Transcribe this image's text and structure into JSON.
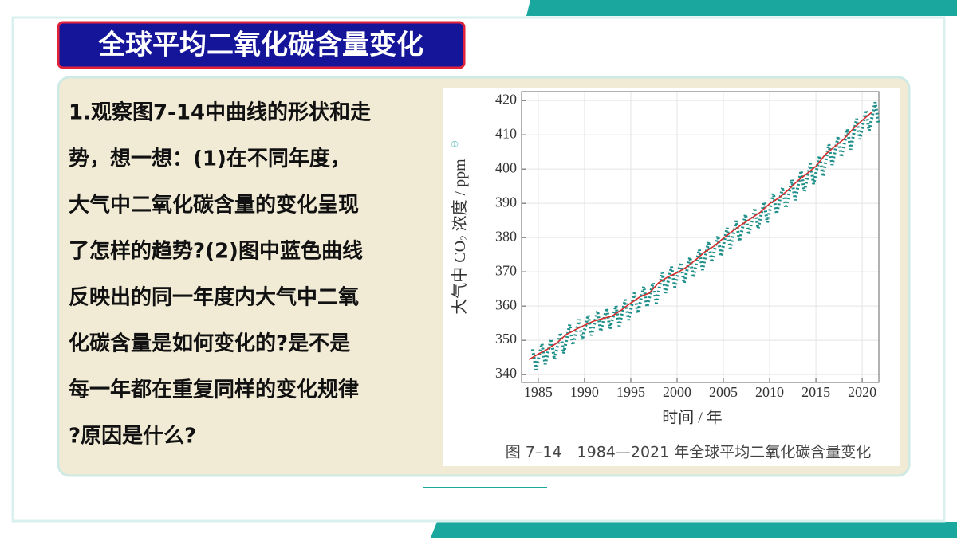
{
  "title": "全球平均二氧化碳含量变化",
  "question": {
    "lines": [
      "1.观察图7-14中曲线的形状和走",
      "势，想一想：(1)在不同年度，",
      "大气中二氧化碳含量的变化呈现",
      "了怎样的趋势?(2)图中蓝色曲线",
      "反映出的同一年度内大气中二氧",
      "化碳含量是如何变化的?是不是",
      "每一年都在重复同样的变化规律",
      "?原因是什么?"
    ]
  },
  "figure": {
    "type": "line",
    "y_label": {
      "text": "大气中 CO",
      "sub": "2",
      "rest": " 浓度 / ppm",
      "note": "①"
    },
    "x_label": "时间 / 年",
    "caption": "图 7–14　1984—2021 年全球平均二氧化碳含量变化",
    "xlim": [
      1983.2,
      2021.8
    ],
    "ylim": [
      337.7,
      422.6
    ],
    "xticks": [
      1985,
      1990,
      1995,
      2000,
      2005,
      2010,
      2015,
      2020
    ],
    "yticks": [
      340,
      350,
      360,
      370,
      380,
      390,
      400,
      410,
      420
    ],
    "grid": true,
    "series": [
      {
        "color": "#1f8f8a",
        "style": "dotted",
        "x": [
          1984.4,
          1984.75,
          1985.4,
          1985.75,
          1986.4,
          1986.75,
          1987.4,
          1987.75,
          1988.4,
          1988.75,
          1989.4,
          1989.75,
          1990.4,
          1990.75,
          1991.4,
          1991.75,
          1992.4,
          1992.75,
          1993.4,
          1993.75,
          1994.4,
          1994.75,
          1995.4,
          1995.75,
          1996.4,
          1996.75,
          1997.4,
          1997.75,
          1998.4,
          1998.75,
          1999.4,
          1999.75,
          2000.4,
          2000.75,
          2001.4,
          2001.75,
          2002.4,
          2002.75,
          2003.4,
          2003.75,
          2004.4,
          2004.75,
          2005.4,
          2005.75,
          2006.4,
          2006.75,
          2007.4,
          2007.75,
          2008.4,
          2008.75,
          2009.4,
          2009.75,
          2010.4,
          2010.75,
          2011.4,
          2011.75,
          2012.4,
          2012.75,
          2013.4,
          2013.75,
          2014.4,
          2014.75,
          2015.4,
          2015.75,
          2016.4,
          2016.75,
          2017.4,
          2017.75,
          2018.4,
          2018.75,
          2019.4,
          2019.75,
          2020.4,
          2020.75,
          2021.4,
          2021.75
        ],
        "values": [
          347.4,
          341.4,
          349.0,
          343.0,
          350.4,
          344.4,
          352.2,
          346.2,
          354.6,
          348.6,
          356.1,
          350.1,
          357.4,
          351.4,
          358.6,
          352.6,
          359.4,
          353.4,
          360.1,
          354.1,
          361.9,
          355.9,
          363.9,
          357.9,
          365.7,
          359.7,
          366.8,
          360.8,
          369.8,
          363.8,
          371.5,
          365.5,
          372.7,
          366.7,
          374.3,
          368.3,
          376.5,
          370.5,
          378.8,
          372.8,
          380.5,
          374.5,
          382.8,
          376.8,
          384.9,
          378.9,
          386.8,
          380.8,
          388.6,
          382.6,
          390.4,
          384.4,
          392.9,
          386.9,
          394.6,
          388.6,
          396.9,
          390.9,
          399.5,
          393.5,
          401.6,
          395.6,
          403.8,
          397.8,
          407.2,
          401.2,
          409.5,
          403.5,
          411.7,
          405.7,
          414.7,
          408.7,
          417.2,
          411.2,
          419.5,
          413.5
        ]
      },
      {
        "color": "#d62b2b",
        "style": "solid",
        "x": [
          1984,
          1985,
          1986,
          1987,
          1988,
          1989,
          1990,
          1991,
          1992,
          1993,
          1994,
          1995,
          1996,
          1997,
          1998,
          1999,
          2000,
          2001,
          2002,
          2003,
          2004,
          2005,
          2006,
          2007,
          2008,
          2009,
          2010,
          2011,
          2012,
          2013,
          2014,
          2015,
          2016,
          2017,
          2018,
          2019,
          2020,
          2021
        ],
        "values": [
          344.4,
          346.0,
          347.4,
          349.2,
          351.6,
          353.1,
          354.4,
          355.6,
          356.4,
          357.1,
          358.9,
          360.9,
          362.7,
          363.8,
          366.8,
          368.5,
          369.7,
          371.3,
          373.5,
          375.8,
          377.5,
          379.8,
          381.9,
          383.8,
          385.6,
          387.4,
          389.9,
          391.6,
          393.9,
          396.5,
          398.6,
          400.8,
          404.2,
          406.5,
          408.7,
          411.7,
          414.2,
          416.5
        ]
      }
    ]
  }
}
